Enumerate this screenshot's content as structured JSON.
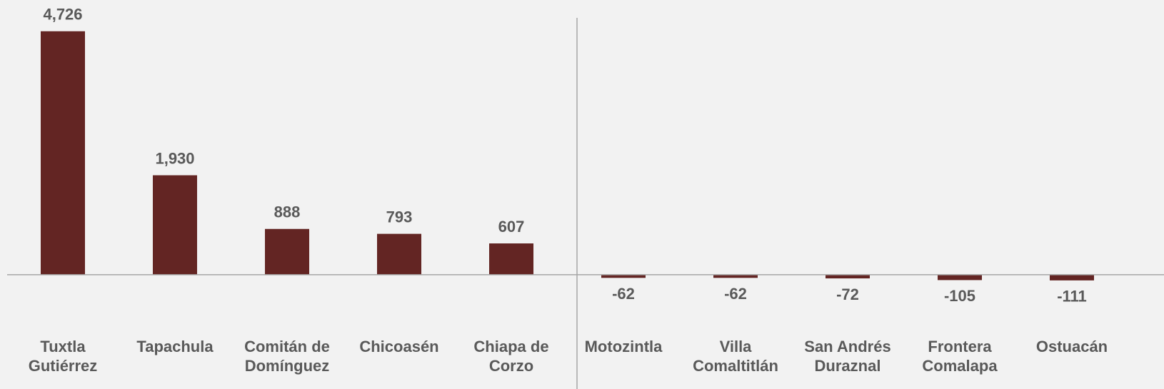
{
  "chart_data": {
    "type": "bar",
    "categories": [
      "Tuxtla Gutiérrez",
      "Tapachula",
      "Comitán de Domínguez",
      "Chicoasén",
      "Chiapa de Corzo",
      "Motozintla",
      "Villa Comaltitlán",
      "San Andrés Duraznal",
      "Frontera Comalapa",
      "Ostuacán"
    ],
    "values": [
      4726,
      1930,
      888,
      793,
      607,
      -62,
      -62,
      -72,
      -105,
      -111
    ],
    "value_labels": [
      "4,726",
      "1,930",
      "888",
      "793",
      "607",
      "-62",
      "-62",
      "-72",
      "-105",
      "-111"
    ],
    "color": "#632523",
    "ylim": [
      -1000,
      5000
    ]
  }
}
